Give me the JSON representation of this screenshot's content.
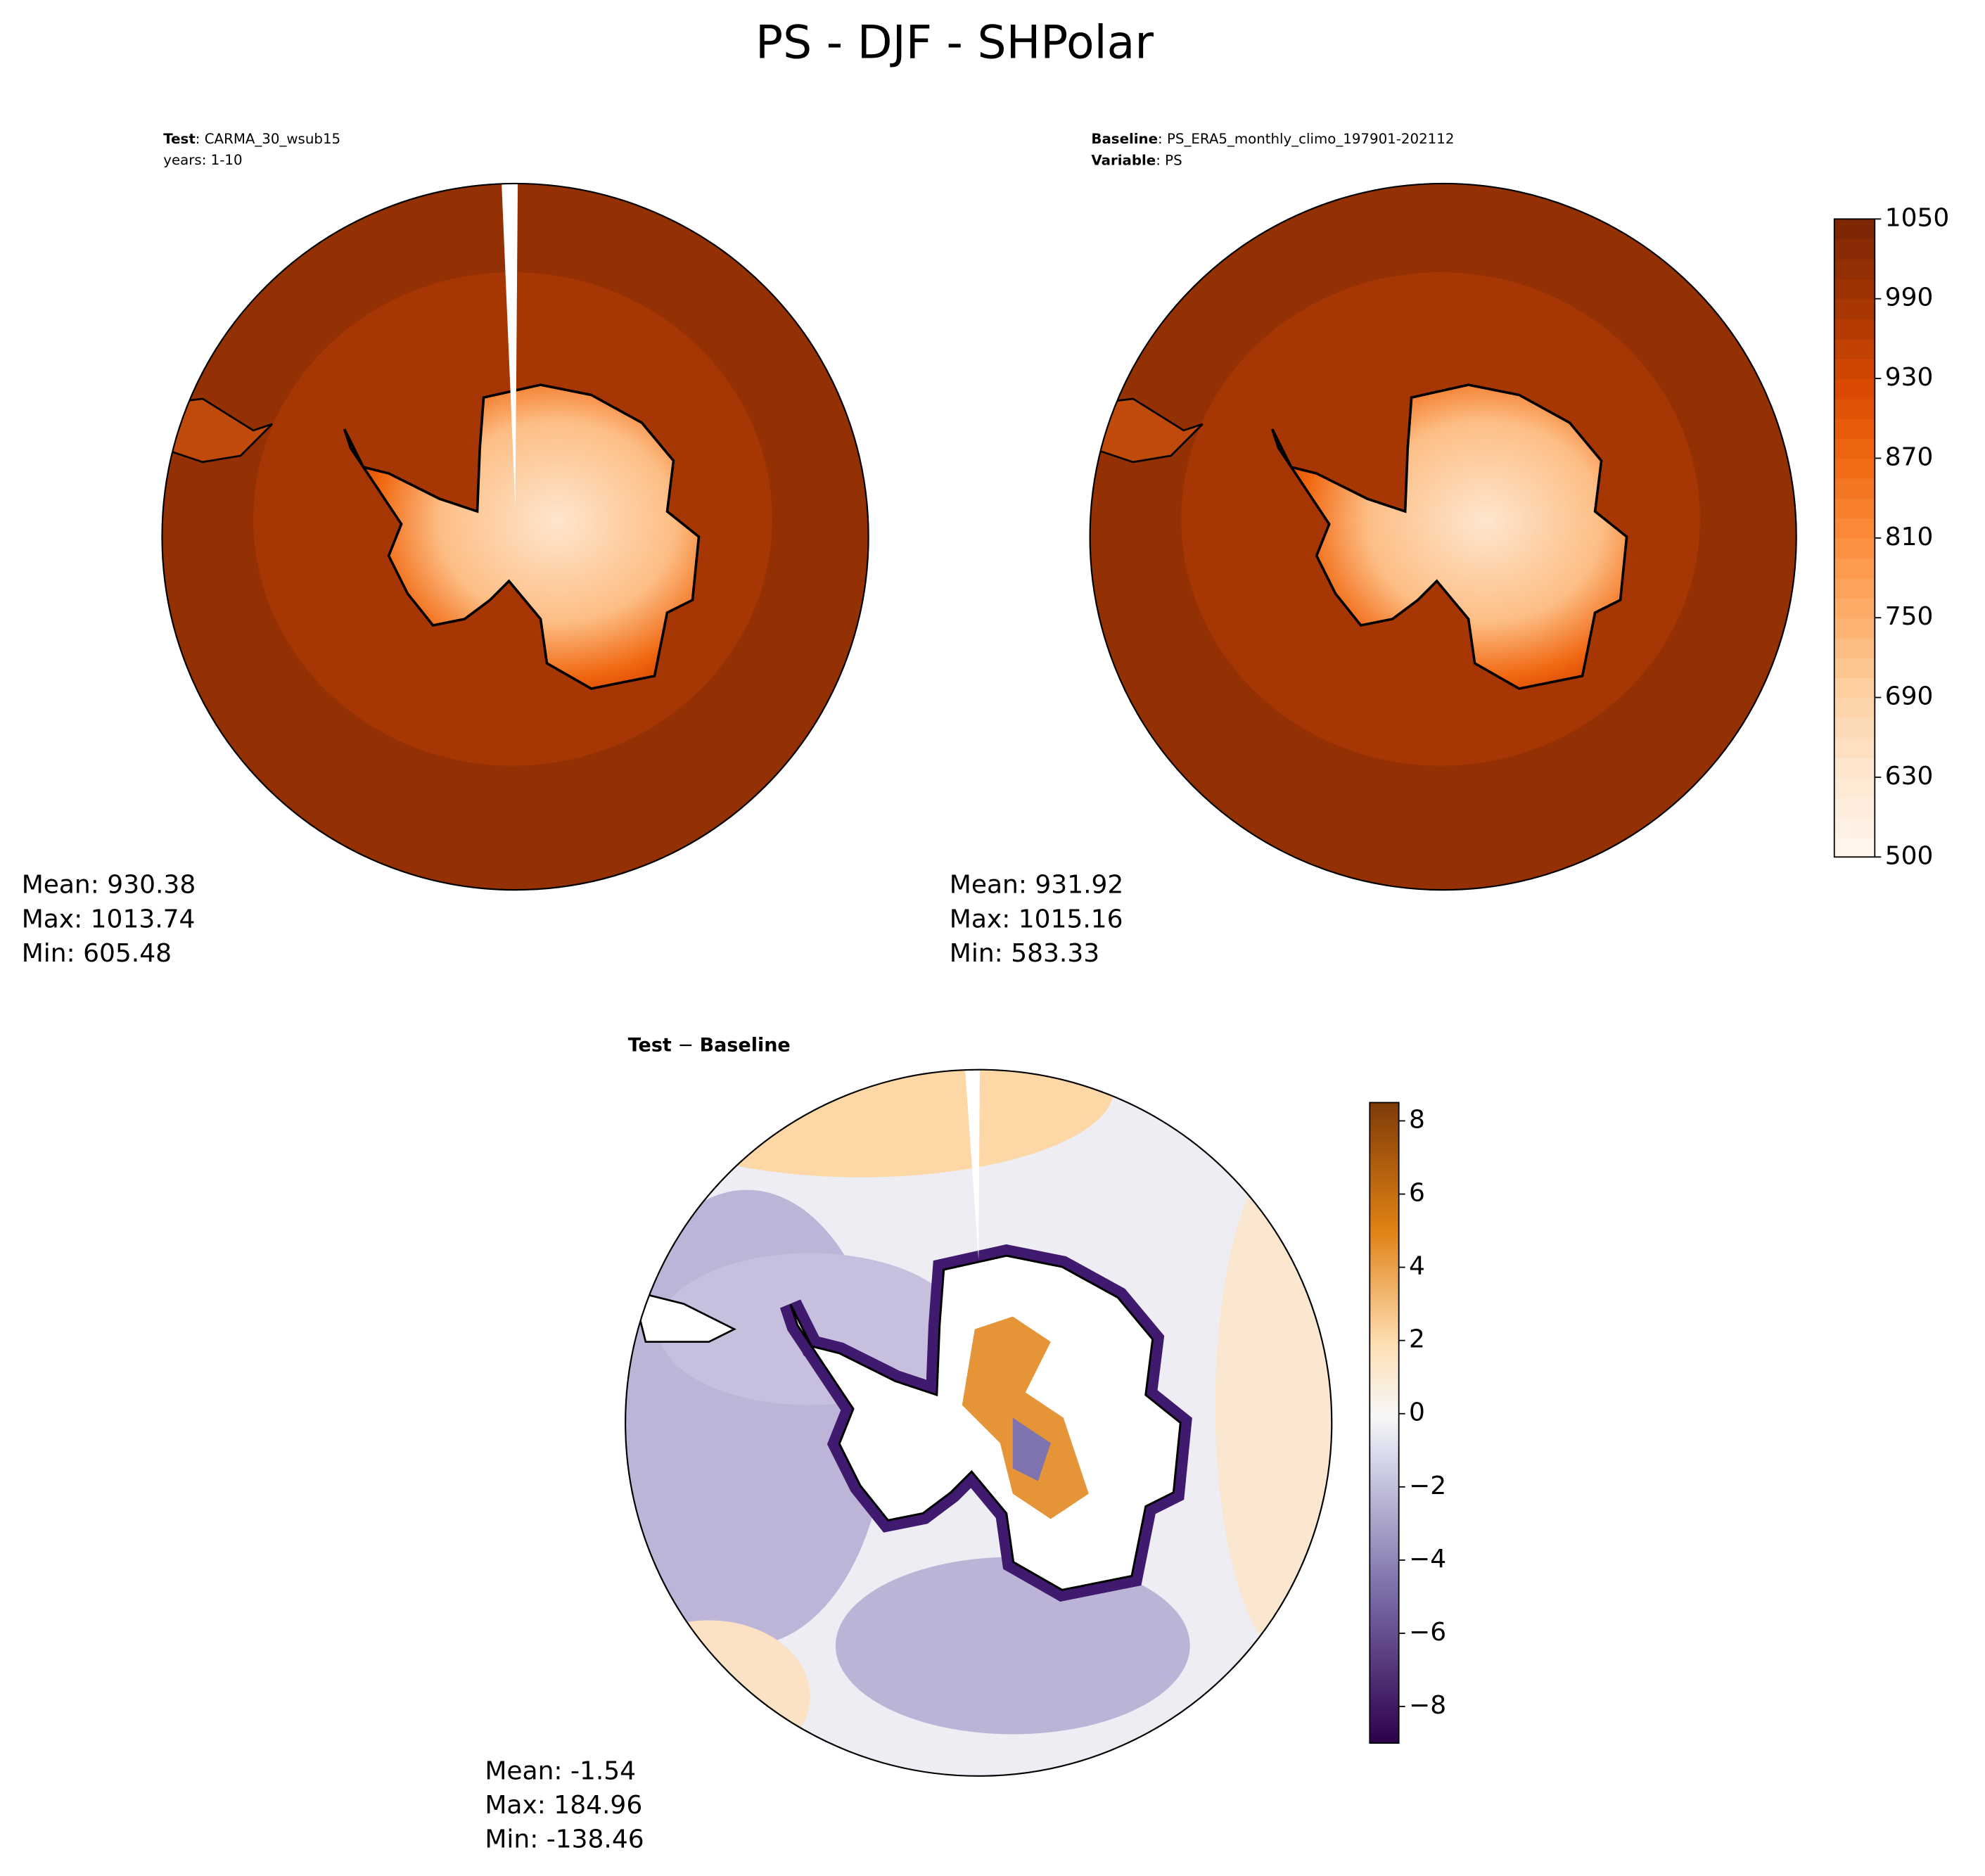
{
  "title": "PS - DJF - SHPolar",
  "panels": [
    {
      "heading_bold": "Test",
      "heading_text": ": CARMA_30_wsub15",
      "line2_text": "years: 1-10",
      "stats": [
        "Mean: 930.38",
        "Max: 1013.74",
        "Min: 605.48"
      ]
    },
    {
      "heading_bold": "Baseline",
      "heading_text": ": PS_ERA5_monthly_climo_197901-202112",
      "line2_bold": "Variable",
      "line2_text": ": PS",
      "stats": [
        "Mean: 931.92",
        "Max: 1015.16",
        "Min: 583.33"
      ]
    },
    {
      "heading_bold": "Test",
      "heading_text": " − ",
      "heading_bold2": "Baseline",
      "stats": [
        "Mean: -1.54",
        "Max: 184.96",
        "Min: -138.46"
      ]
    }
  ],
  "colorbars": [
    {
      "lim": [
        500,
        1050
      ],
      "levels": [
        500,
        585,
        600,
        615,
        630,
        645,
        660,
        675,
        690,
        705,
        720,
        735,
        750,
        765,
        780,
        795,
        810,
        825,
        840,
        855,
        870,
        885,
        900,
        915,
        930,
        945,
        960,
        975,
        990,
        1005,
        1020,
        1035,
        1050
      ],
      "ticks": [
        500,
        630,
        690,
        750,
        810,
        870,
        930,
        990,
        1050
      ]
    },
    {
      "lim": [
        -9,
        8.5
      ],
      "ticks": [
        {
          "value": -8,
          "label": "−8"
        },
        {
          "value": -6,
          "label": "−6"
        },
        {
          "value": -4,
          "label": "−4"
        },
        {
          "value": -2,
          "label": "−2"
        },
        0,
        2,
        4,
        6,
        8
      ]
    }
  ]
}
